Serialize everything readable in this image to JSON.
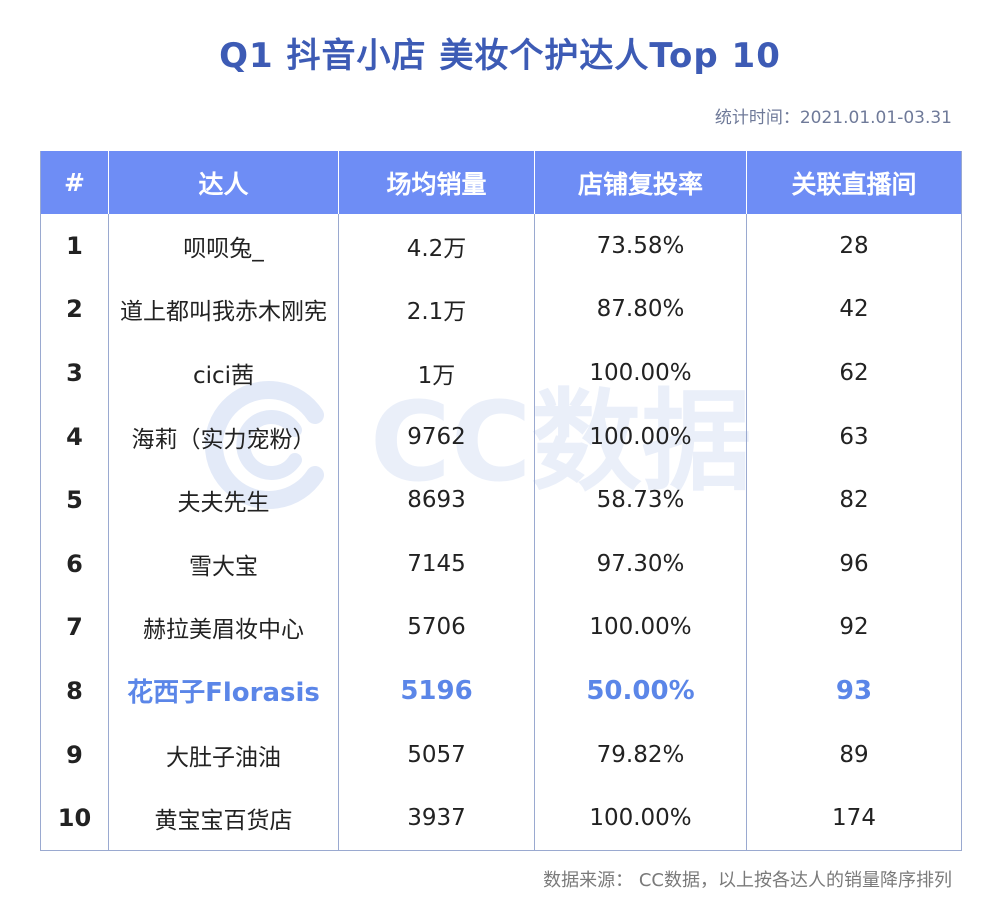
{
  "title": "Q1 抖音小店 美妆个护达人Top 10",
  "subtitle": "统计时间：2021.01.01-03.31",
  "watermark": "CC数据",
  "footer": "数据来源： CC数据，以上按各达人的销量降序排列",
  "colors": {
    "title": "#3d5bb5",
    "header_bg": "#6e8df5",
    "highlight": "#5b86e8",
    "watermark": "#dfe7f7"
  },
  "chart_data": {
    "type": "table",
    "columns": [
      "#",
      "达人",
      "场均销量",
      "店铺复投率",
      "关联直播间"
    ],
    "rows": [
      [
        "1",
        "呗呗兔_",
        "4.2万",
        "73.58%",
        "28"
      ],
      [
        "2",
        "道上都叫我赤木刚宪",
        "2.1万",
        "87.80%",
        "42"
      ],
      [
        "3",
        "cici茜",
        "1万",
        "100.00%",
        "62"
      ],
      [
        "4",
        "海莉（实力宠粉）",
        "9762",
        "100.00%",
        "63"
      ],
      [
        "5",
        "夫夫先生",
        "8693",
        "58.73%",
        "82"
      ],
      [
        "6",
        "雪大宝",
        "7145",
        "97.30%",
        "96"
      ],
      [
        "7",
        "赫拉美眉妆中心",
        "5706",
        "100.00%",
        "92"
      ],
      [
        "8",
        "花西子Florasis",
        "5196",
        "50.00%",
        "93"
      ],
      [
        "9",
        "大肚子油油",
        "5057",
        "79.82%",
        "89"
      ],
      [
        "10",
        "黄宝宝百货店",
        "3937",
        "100.00%",
        "174"
      ]
    ],
    "highlighted_row": 8
  }
}
